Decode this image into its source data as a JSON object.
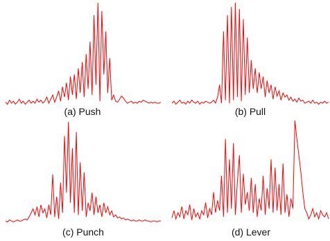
{
  "line_color": "#ff0000",
  "chart_data": [
    {
      "type": "line",
      "title": "(a) Push",
      "y_range": [
        0,
        1
      ],
      "axes_visible": false,
      "grid": false,
      "legend": "none",
      "series": [
        {
          "values": [
            0.03,
            0.01,
            0.05,
            0.02,
            0.04,
            0.01,
            0.03,
            0.06,
            0.02,
            0.04,
            0.01,
            0.03,
            0.05,
            0.02,
            0.04,
            0.02,
            0.06,
            0.03,
            0.05,
            0.02,
            0.04,
            0.08,
            0.02,
            0.06,
            0.1,
            0.03,
            0.08,
            0.14,
            0.04,
            0.18,
            0.08,
            0.22,
            0.05,
            0.28,
            0.1,
            0.3,
            0.06,
            0.36,
            0.12,
            0.42,
            0.08,
            0.5,
            0.16,
            0.62,
            0.1,
            0.88,
            0.2,
            1.0,
            0.04,
            0.92,
            0.3,
            0.72,
            0.12,
            0.46,
            0.05,
            0.1,
            0.04,
            0.03,
            0.06,
            0.09,
            0.07,
            0.04,
            0.02,
            0.03,
            0.04,
            0.02,
            0.03,
            0.02,
            0.04,
            0.03,
            0.05,
            0.04,
            0.03,
            0.02,
            0.03,
            0.02,
            0.03,
            0.02,
            0.02,
            0.03
          ]
        }
      ]
    },
    {
      "type": "line",
      "title": "(b) Pull",
      "y_range": [
        0,
        1
      ],
      "axes_visible": false,
      "grid": false,
      "legend": "none",
      "series": [
        {
          "values": [
            0.02,
            0.04,
            0.01,
            0.03,
            0.05,
            0.02,
            0.03,
            0.01,
            0.04,
            0.02,
            0.05,
            0.03,
            0.02,
            0.04,
            0.01,
            0.03,
            0.02,
            0.04,
            0.03,
            0.02,
            0.03,
            0.05,
            0.02,
            0.08,
            0.2,
            0.02,
            0.72,
            0.05,
            0.88,
            0.02,
            0.96,
            0.05,
            1.0,
            0.08,
            0.94,
            0.04,
            0.84,
            0.1,
            0.66,
            0.12,
            0.44,
            0.16,
            0.36,
            0.12,
            0.32,
            0.16,
            0.28,
            0.08,
            0.24,
            0.12,
            0.2,
            0.06,
            0.18,
            0.09,
            0.14,
            0.05,
            0.12,
            0.08,
            0.1,
            0.05,
            0.08,
            0.04,
            0.06,
            0.03,
            0.07,
            0.04,
            0.05,
            0.02,
            0.03,
            0.04,
            0.02,
            0.05,
            0.02,
            0.03,
            0.01,
            0.03,
            0.02,
            0.04,
            0.02,
            0.03
          ]
        }
      ]
    },
    {
      "type": "line",
      "title": "(c) Punch",
      "y_range": [
        0,
        1
      ],
      "axes_visible": false,
      "grid": false,
      "legend": "none",
      "series": [
        {
          "values": [
            0.02,
            0.01,
            0.03,
            0.02,
            0.01,
            0.02,
            0.03,
            0.02,
            0.02,
            0.03,
            0.04,
            0.03,
            0.06,
            0.1,
            0.14,
            0.08,
            0.16,
            0.06,
            0.18,
            0.1,
            0.14,
            0.05,
            0.18,
            0.08,
            0.48,
            0.06,
            0.26,
            0.04,
            0.4,
            0.1,
            0.86,
            0.3,
            1.0,
            0.2,
            0.74,
            0.1,
            0.9,
            0.08,
            0.6,
            0.12,
            0.5,
            0.06,
            0.2,
            0.12,
            0.3,
            0.08,
            0.26,
            0.1,
            0.18,
            0.06,
            0.2,
            0.1,
            0.16,
            0.08,
            0.12,
            0.06,
            0.08,
            0.05,
            0.06,
            0.04,
            0.05,
            0.03,
            0.04,
            0.03,
            0.02,
            0.03,
            0.02,
            0.02,
            0.03,
            0.02,
            0.02,
            0.03,
            0.02,
            0.02,
            0.01,
            0.02,
            0.02,
            0.01,
            0.02,
            0.02
          ]
        }
      ]
    },
    {
      "type": "line",
      "title": "(d) Lever",
      "y_range": [
        0,
        1
      ],
      "axes_visible": false,
      "grid": false,
      "legend": "none",
      "series": [
        {
          "values": [
            0.05,
            0.12,
            0.04,
            0.1,
            0.06,
            0.16,
            0.04,
            0.12,
            0.08,
            0.18,
            0.03,
            0.14,
            0.06,
            0.1,
            0.04,
            0.12,
            0.08,
            0.2,
            0.05,
            0.14,
            0.08,
            0.3,
            0.1,
            0.22,
            0.12,
            0.46,
            0.06,
            0.82,
            0.1,
            0.62,
            0.14,
            0.78,
            0.08,
            0.4,
            0.66,
            0.1,
            0.48,
            0.18,
            0.3,
            0.12,
            0.44,
            0.1,
            0.38,
            0.06,
            0.24,
            0.12,
            0.46,
            0.08,
            0.34,
            0.14,
            0.62,
            0.1,
            0.54,
            0.12,
            0.38,
            0.08,
            0.58,
            0.1,
            0.28,
            0.06,
            0.24,
            0.14,
            1.0,
            0.82,
            0.66,
            0.5,
            0.3,
            0.14,
            0.1,
            0.04,
            0.08,
            0.14,
            0.06,
            0.1,
            0.04,
            0.12,
            0.08,
            0.06,
            0.1,
            0.04
          ]
        }
      ]
    }
  ]
}
